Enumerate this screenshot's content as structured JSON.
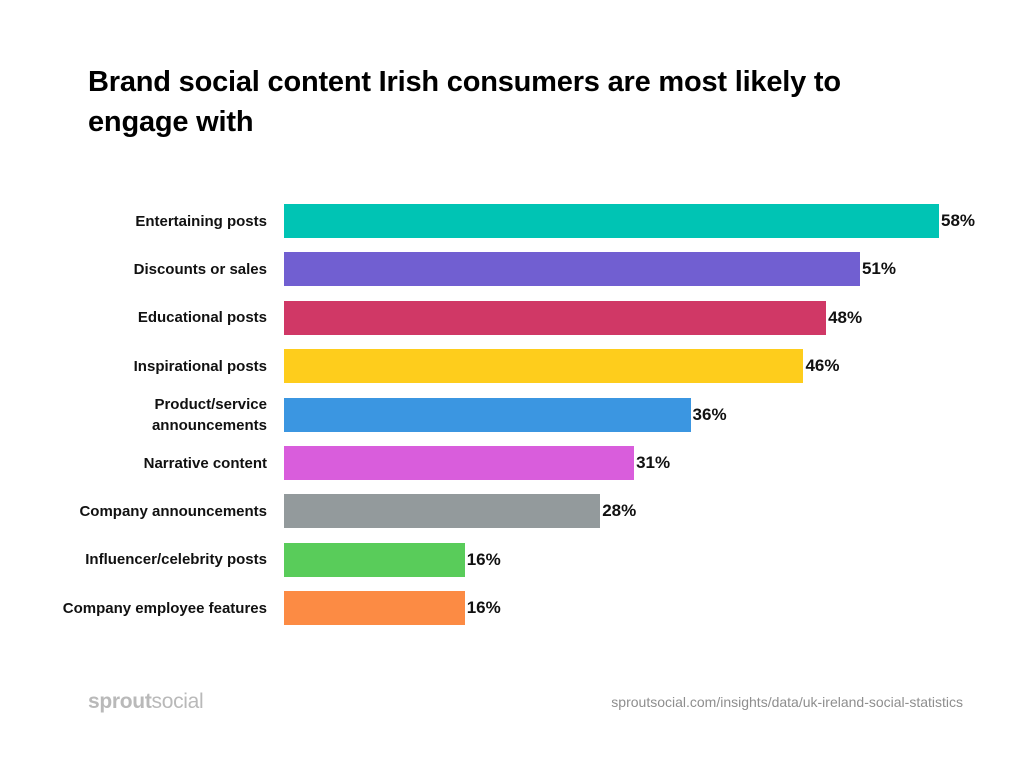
{
  "chart_data": {
    "type": "bar",
    "orientation": "horizontal",
    "title": "Brand social content Irish consumers are most likely to engage with",
    "xlabel": "",
    "ylabel": "",
    "xlim": [
      0,
      58
    ],
    "grid": false,
    "categories": [
      "Entertaining posts",
      "Discounts or sales",
      "Educational posts",
      "Inspirational posts",
      "Product/service announcements",
      "Narrative content",
      "Company announcements",
      "Influencer/celebrity posts",
      "Company employee features"
    ],
    "category_lines": [
      [
        "Entertaining posts"
      ],
      [
        "Discounts or sales"
      ],
      [
        "Educational posts"
      ],
      [
        "Inspirational posts"
      ],
      [
        "Product/service",
        "announcements"
      ],
      [
        "Narrative content"
      ],
      [
        "Company announcements"
      ],
      [
        "Influencer/celebrity posts"
      ],
      [
        "Company employee features"
      ]
    ],
    "values": [
      58,
      51,
      48,
      46,
      36,
      31,
      28,
      16,
      16
    ],
    "data_labels": [
      "58%",
      "51%",
      "48%",
      "46%",
      "36%",
      "31%",
      "28%",
      "16%",
      "16%"
    ],
    "colors": [
      "#00c4b4",
      "#715fd1",
      "#d03866",
      "#fecd1c",
      "#3b96e1",
      "#d95ddc",
      "#939a9c",
      "#59cc5a",
      "#fc8b44"
    ]
  },
  "footer": {
    "logo_bold": "sprout",
    "logo_light": "social",
    "source": "sproutsocial.com/insights/data/uk-ireland-social-statistics"
  }
}
